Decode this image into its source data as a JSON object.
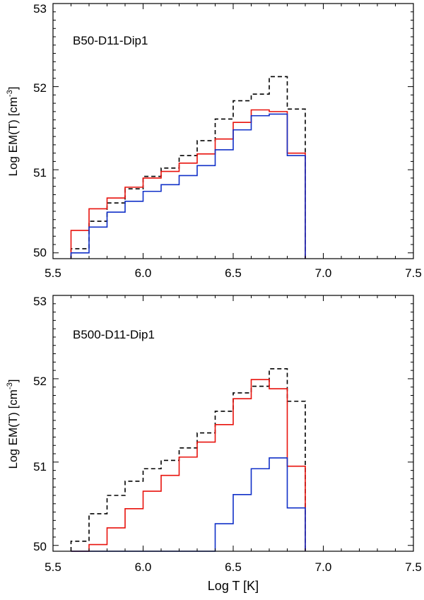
{
  "chart_data": [
    {
      "type": "line",
      "step": true,
      "title": "B50-D11-Dip1",
      "xlabel": "",
      "ylabel": "Log EM(T) [cm^-3]",
      "ylabel_base": "Log EM(T) [cm",
      "ylabel_sup": "-3",
      "ylabel_close": "]",
      "xlim": [
        5.5,
        7.5
      ],
      "ylim": [
        49.93,
        53.0
      ],
      "xticks": [
        5.5,
        6.0,
        6.5,
        7.0,
        7.5
      ],
      "xtick_labels": [
        "5.5",
        "6.0",
        "6.5",
        "7.0",
        "7.5"
      ],
      "yticks": [
        50,
        51,
        52,
        53
      ],
      "ytick_labels": [
        "50",
        "51",
        "52",
        "53"
      ],
      "bin_edges": [
        5.6,
        5.7,
        5.8,
        5.9,
        6.0,
        6.1,
        6.2,
        6.3,
        6.4,
        6.5,
        6.6,
        6.7,
        6.8,
        6.9
      ],
      "series": [
        {
          "name": "dashed",
          "color": "#000000",
          "dashed": true,
          "values": [
            50.05,
            50.38,
            50.6,
            50.77,
            50.92,
            51.02,
            51.17,
            51.35,
            51.61,
            51.83,
            51.91,
            52.12,
            51.73
          ]
        },
        {
          "name": "red",
          "color": "#e8120c",
          "dashed": false,
          "values": [
            50.27,
            50.53,
            50.66,
            50.79,
            50.9,
            50.98,
            51.08,
            51.19,
            51.37,
            51.57,
            51.72,
            51.7,
            51.2
          ]
        },
        {
          "name": "blue",
          "color": "#1030c8",
          "dashed": false,
          "values": [
            50.0,
            50.31,
            50.49,
            50.62,
            50.74,
            50.82,
            50.93,
            51.05,
            51.24,
            51.48,
            51.65,
            51.67,
            51.17
          ]
        }
      ]
    },
    {
      "type": "line",
      "step": true,
      "title": "B500-D11-Dip1",
      "xlabel": "Log T [K]",
      "ylabel": "Log EM(T) [cm^-3]",
      "ylabel_base": "Log EM(T) [cm",
      "ylabel_sup": "-3",
      "ylabel_close": "]",
      "xlim": [
        5.5,
        7.5
      ],
      "ylim": [
        49.93,
        53.0
      ],
      "xticks": [
        5.5,
        6.0,
        6.5,
        7.0,
        7.5
      ],
      "xtick_labels": [
        "5.5",
        "6.0",
        "6.5",
        "7.0",
        "7.5"
      ],
      "yticks": [
        50,
        51,
        52,
        53
      ],
      "ytick_labels": [
        "50",
        "51",
        "52",
        "53"
      ],
      "bin_edges": [
        5.6,
        5.7,
        5.8,
        5.9,
        6.0,
        6.1,
        6.2,
        6.3,
        6.4,
        6.5,
        6.6,
        6.7,
        6.8,
        6.9
      ],
      "series": [
        {
          "name": "dashed",
          "color": "#000000",
          "dashed": true,
          "values": [
            50.05,
            50.38,
            50.6,
            50.77,
            50.92,
            51.02,
            51.17,
            51.35,
            51.61,
            51.83,
            51.91,
            52.12,
            51.73
          ]
        },
        {
          "name": "red",
          "color": "#e8120c",
          "dashed": false,
          "values": [
            49.93,
            50.01,
            50.21,
            50.44,
            50.65,
            50.84,
            51.06,
            51.24,
            51.45,
            51.76,
            51.99,
            51.88,
            50.95
          ]
        },
        {
          "name": "blue",
          "color": "#1030c8",
          "dashed": false,
          "values": [
            49.93,
            49.93,
            49.93,
            49.93,
            49.93,
            49.93,
            49.93,
            49.93,
            50.26,
            50.61,
            50.92,
            51.05,
            50.45
          ]
        }
      ]
    }
  ]
}
